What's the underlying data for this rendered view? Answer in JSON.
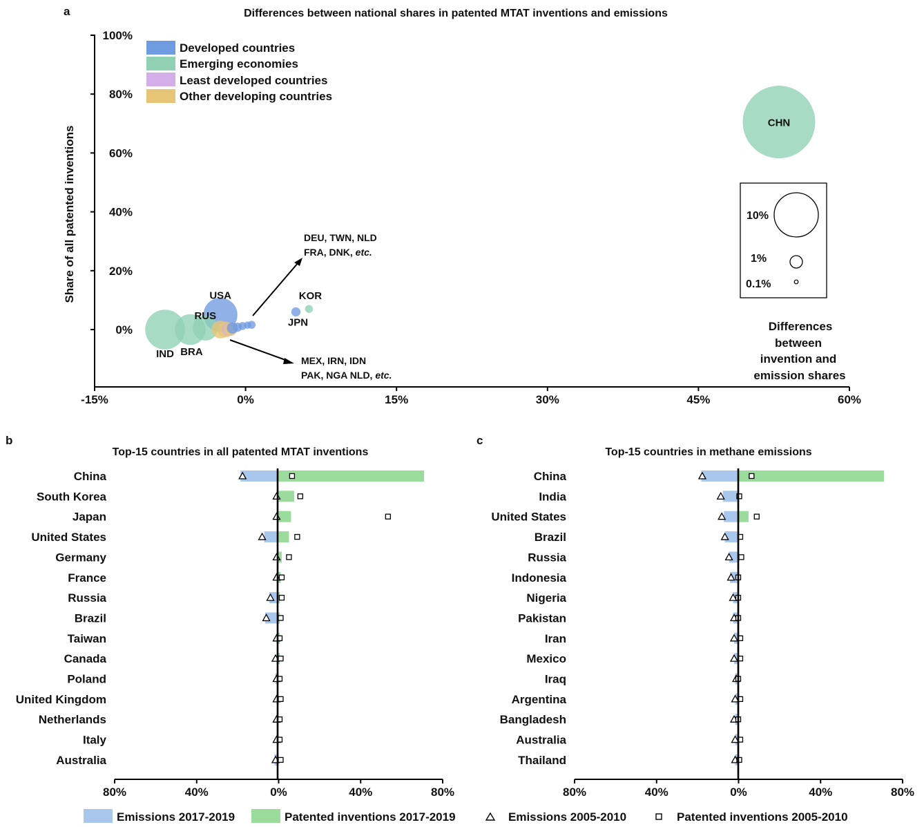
{
  "panels": {
    "a": {
      "letter": "a",
      "title": "Differences between national shares in patented MTAT inventions and emissions",
      "ylabel": "Share of all patented inventions",
      "xlabel_lines": [
        "Differences",
        "between",
        "invention and",
        "emission shares"
      ],
      "legend": [
        {
          "label": "Developed countries",
          "color": "#6f9be0"
        },
        {
          "label": "Emerging economies",
          "color": "#8fd1b2"
        },
        {
          "label": "Least developed countries",
          "color": "#d3aee8"
        },
        {
          "label": "Other developing countries",
          "color": "#e6c577"
        }
      ],
      "size_legend": [
        "10%",
        "1%",
        "0.1%"
      ],
      "annotation_upper": {
        "line1": "DEU, TWN, NLD",
        "line2": "FRA, DNK,",
        "etc": "etc."
      },
      "annotation_lower": {
        "line1": "MEX, IRN, IDN",
        "line2": "PAK, NGA  NLD,",
        "etc": "etc."
      }
    },
    "b": {
      "letter": "b",
      "title": "Top-15 countries in all patented   MTAT inventions"
    },
    "c": {
      "letter": "c",
      "title": "Top-15 countries in  methane emissions"
    }
  },
  "legend_bottom": {
    "emissions_1719": "Emissions 2017-2019",
    "patented_1719": "Patented inventions 2017-2019",
    "emissions_0510": "Emissions 2005-2010",
    "patented_0510": "Patented inventions 2005-2010"
  },
  "colors": {
    "emissions_bar": "#a9c7ec",
    "patented_bar": "#9bdb9c",
    "developed": "#6f9be0",
    "emerging": "#8fd1b2",
    "least_developed": "#d3aee8",
    "other_developing": "#e6c577"
  },
  "chart_data": [
    {
      "type": "scatter",
      "title": "Differences between national shares in patented MTAT inventions and emissions",
      "xlabel": "Differences between invention and emission shares",
      "ylabel": "Share of all patented inventions",
      "xlim": [
        -15,
        60
      ],
      "ylim": [
        -20,
        100
      ],
      "xticks": [
        "-15%",
        "0%",
        "15%",
        "30%",
        "45%",
        "60%"
      ],
      "yticks": [
        "0%",
        "20%",
        "40%",
        "60%",
        "80%",
        "100%"
      ],
      "bubble_size_unit": "share (%)",
      "points": [
        {
          "label": "CHN",
          "group": "Emerging economies",
          "x": 53,
          "y": 70.5,
          "size": 25
        },
        {
          "label": "IND",
          "group": "Emerging economies",
          "x": -8,
          "y": 0,
          "size": 7.5
        },
        {
          "label": "BRA",
          "group": "Emerging economies",
          "x": -5.5,
          "y": 0,
          "size": 4.5
        },
        {
          "label": "RUS",
          "group": "Emerging economies",
          "x": -4,
          "y": 0.5,
          "size": 3
        },
        {
          "label": "USA",
          "group": "Developed countries",
          "x": -2.5,
          "y": 5,
          "size": 5.5
        },
        {
          "label": "JPN",
          "group": "Developed countries",
          "x": 5,
          "y": 6,
          "size": 0.4
        },
        {
          "label": "KOR",
          "group": "Emerging economies",
          "x": 6.3,
          "y": 7,
          "size": 0.3
        },
        {
          "label": "",
          "group": "Other developing countries",
          "x": -2.5,
          "y": 0,
          "size": 1.5
        },
        {
          "label": "",
          "group": "Other developing countries",
          "x": -2,
          "y": 0,
          "size": 1.2
        },
        {
          "label": "",
          "group": "Least developed countries",
          "x": -1.7,
          "y": 0,
          "size": 0.8
        },
        {
          "label": "",
          "group": "Other developing countries",
          "x": -1.5,
          "y": 0,
          "size": 0.8
        },
        {
          "label": "",
          "group": "Developed countries",
          "x": -1.3,
          "y": 0.5,
          "size": 0.6
        },
        {
          "label": "",
          "group": "Developed countries",
          "x": -0.8,
          "y": 0.8,
          "size": 0.4
        },
        {
          "label": "",
          "group": "Developed countries",
          "x": -0.3,
          "y": 1.2,
          "size": 0.3
        },
        {
          "label": "",
          "group": "Developed countries",
          "x": 0.2,
          "y": 1.5,
          "size": 0.25
        },
        {
          "label": "",
          "group": "Developed countries",
          "x": 0.6,
          "y": 1.6,
          "size": 0.3
        }
      ]
    },
    {
      "type": "bar",
      "orientation": "horizontal",
      "title": "Top-15 countries in all patented   MTAT inventions",
      "xlim": [
        -80,
        80
      ],
      "xticks": [
        "80%",
        "40%",
        "0%",
        "40%",
        "80%"
      ],
      "categories": [
        "China",
        "South Korea",
        "Japan",
        "United States",
        "Germany",
        "France",
        "Russia",
        "Brazil",
        "Taiwan",
        "Canada",
        "Poland",
        "United Kingdom",
        "Netherlands",
        "Italy",
        "Australia"
      ],
      "series": [
        {
          "name": "Emissions 2017-2019",
          "values": [
            -18,
            0,
            0,
            -6.5,
            0,
            -0.5,
            -4,
            -6,
            -0.5,
            -0.5,
            -1,
            -0.5,
            -0.5,
            -0.5,
            -1.5
          ]
        },
        {
          "name": "Patented inventions 2017-2019",
          "values": [
            71,
            8,
            6.5,
            5.5,
            2,
            1.5,
            1,
            1,
            1,
            1,
            0.5,
            0.5,
            0.5,
            0.5,
            0.5
          ]
        },
        {
          "name": "Emissions 2005-2010",
          "values": [
            -17,
            -0.5,
            -0.5,
            -7.5,
            -0.5,
            -0.5,
            -3.5,
            -5.5,
            -0.5,
            -1,
            -0.5,
            -0.5,
            -0.5,
            -0.5,
            -1
          ]
        },
        {
          "name": "Patented inventions 2005-2010",
          "values": [
            7,
            11,
            53.5,
            9.5,
            5.5,
            2,
            2,
            1.5,
            1,
            1.5,
            1,
            1.5,
            1,
            1,
            1.5
          ]
        }
      ]
    },
    {
      "type": "bar",
      "orientation": "horizontal",
      "title": "Top-15 countries in  methane emissions",
      "xlim": [
        -80,
        80
      ],
      "xticks": [
        "80%",
        "40%",
        "0%",
        "40%",
        "80%"
      ],
      "categories": [
        "China",
        "India",
        "United States",
        "Brazil",
        "Russia",
        "Indonesia",
        "Nigeria",
        "Pakistan",
        "Iran",
        "Mexico",
        "Iraq",
        "Argentina",
        "Bangladesh",
        "Australia",
        "Thailand"
      ],
      "series": [
        {
          "name": "Emissions 2017-2019",
          "values": [
            -18,
            -7.5,
            -7,
            -6.5,
            -4.5,
            -4,
            -2.5,
            -2.5,
            -2,
            -2,
            -1.5,
            -1.5,
            -1.5,
            -1.5,
            -1.5
          ]
        },
        {
          "name": "Patented inventions 2017-2019",
          "values": [
            71,
            0.5,
            5,
            0.5,
            0.5,
            0.5,
            0,
            0,
            0,
            0,
            0,
            0,
            0,
            0,
            0
          ]
        },
        {
          "name": "Emissions 2005-2010",
          "values": [
            -17.5,
            -8.5,
            -8,
            -6.5,
            -4.5,
            -3.5,
            -2.5,
            -2,
            -2,
            -2,
            -1,
            -1.5,
            -2,
            -1.5,
            -1.5
          ]
        },
        {
          "name": "Patented inventions 2005-2010",
          "values": [
            6.5,
            0.5,
            9,
            1,
            1.5,
            0,
            0,
            0,
            1,
            1,
            0,
            1,
            0,
            1,
            0.5
          ]
        }
      ]
    }
  ]
}
